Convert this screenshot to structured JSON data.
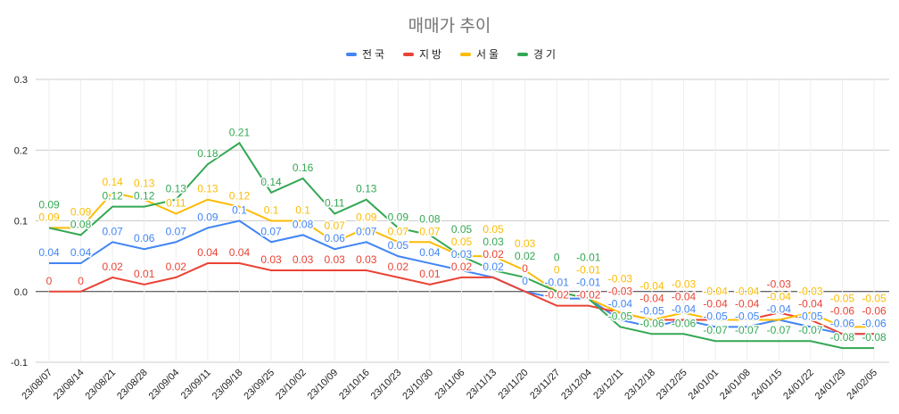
{
  "chart_data": {
    "type": "line",
    "title": "매매가 추이",
    "xlabel": "",
    "ylabel": "",
    "ylim": [
      -0.1,
      0.3
    ],
    "yticks": [
      "0.3",
      "0.2",
      "0.1",
      "0.0",
      "-0.1"
    ],
    "ytick_values": [
      0.3,
      0.2,
      0.1,
      0.0,
      -0.1
    ],
    "grid": true,
    "legend_position": "top",
    "data_labels": true,
    "categories": [
      "23/08/07",
      "23/08/14",
      "23/08/21",
      "23/08/28",
      "23/09/04",
      "23/09/11",
      "23/09/18",
      "23/09/25",
      "23/10/02",
      "23/10/09",
      "23/10/16",
      "23/10/23",
      "23/10/30",
      "23/11/06",
      "23/11/13",
      "23/11/20",
      "23/11/27",
      "23/12/04",
      "23/12/11",
      "23/12/18",
      "23/12/25",
      "24/01/01",
      "24/01/08",
      "24/01/15",
      "24/01/22",
      "24/01/29",
      "24/02/05"
    ],
    "series": [
      {
        "name": "전국",
        "color": "#4285f4",
        "values": [
          0.04,
          0.04,
          0.07,
          0.06,
          0.07,
          0.09,
          0.1,
          0.07,
          0.08,
          0.06,
          0.07,
          0.05,
          0.04,
          0.03,
          0.02,
          0,
          -0.01,
          -0.01,
          -0.04,
          -0.05,
          -0.04,
          -0.05,
          -0.05,
          -0.04,
          -0.05,
          -0.06,
          -0.06
        ]
      },
      {
        "name": "지방",
        "color": "#ea4335",
        "values": [
          0,
          0,
          0.02,
          0.01,
          0.02,
          0.04,
          0.04,
          0.03,
          0.03,
          0.03,
          0.03,
          0.02,
          0.01,
          0.02,
          0.02,
          0,
          -0.02,
          -0.02,
          -0.03,
          -0.04,
          -0.04,
          -0.04,
          -0.04,
          -0.03,
          -0.04,
          -0.06,
          -0.06
        ]
      },
      {
        "name": "서울",
        "color": "#fbbc04",
        "values": [
          0.09,
          0.09,
          0.14,
          0.13,
          0.11,
          0.13,
          0.12,
          0.1,
          0.1,
          0.07,
          0.09,
          0.07,
          0.07,
          0.05,
          0.05,
          0.03,
          0,
          -0.01,
          -0.03,
          -0.04,
          -0.03,
          -0.04,
          -0.04,
          -0.04,
          -0.03,
          -0.05,
          -0.05
        ]
      },
      {
        "name": "경기",
        "color": "#34a853",
        "values": [
          0.09,
          0.08,
          0.12,
          0.12,
          0.13,
          0.18,
          0.21,
          0.14,
          0.16,
          0.11,
          0.13,
          0.09,
          0.08,
          0.05,
          0.03,
          0.02,
          0,
          -0.01,
          -0.05,
          -0.06,
          -0.06,
          -0.07,
          -0.07,
          -0.07,
          -0.07,
          -0.08,
          -0.08
        ]
      }
    ]
  }
}
